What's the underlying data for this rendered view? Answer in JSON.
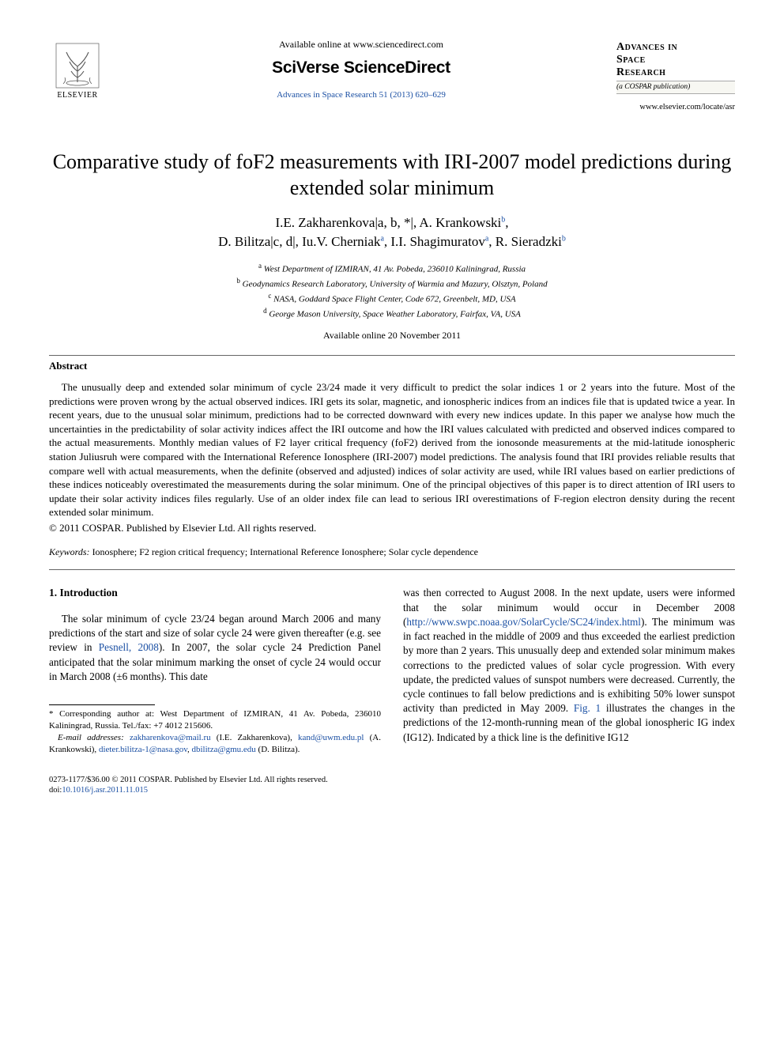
{
  "header": {
    "available_online": "Available online at www.sciencedirect.com",
    "platform_brand": "SciVerse ScienceDirect",
    "journal_ref": "Advances in Space Research 51 (2013) 620–629",
    "publisher_label": "ELSEVIER",
    "journal_name_l1": "Advances in",
    "journal_name_l2": "Space",
    "journal_name_l3": "Research",
    "journal_subtitle": "(a COSPAR publication)",
    "journal_url": "www.elsevier.com/locate/asr"
  },
  "article": {
    "title": "Comparative study of foF2 measurements with IRI-2007 model predictions during extended solar minimum",
    "authors_html": "I.E. Zakharenkova|a,b,*|, A. Krankowski|b|, D. Bilitza|c,d|, Iu.V. Cherniak|a|, I.I. Shagimuratov|a|, R. Sieradzki|b|",
    "affiliations": [
      {
        "sup": "a",
        "text": "West Department of IZMIRAN, 41 Av. Pobeda, 236010 Kaliningrad, Russia"
      },
      {
        "sup": "b",
        "text": "Geodynamics Research Laboratory, University of Warmia and Mazury, Olsztyn, Poland"
      },
      {
        "sup": "c",
        "text": "NASA, Goddard Space Flight Center, Code 672, Greenbelt, MD, USA"
      },
      {
        "sup": "d",
        "text": "George Mason University, Space Weather Laboratory, Fairfax, VA, USA"
      }
    ],
    "available_date": "Available online 20 November 2011"
  },
  "abstract": {
    "heading": "Abstract",
    "text": "The unusually deep and extended solar minimum of cycle 23/24 made it very difficult to predict the solar indices 1 or 2 years into the future. Most of the predictions were proven wrong by the actual observed indices. IRI gets its solar, magnetic, and ionospheric indices from an indices file that is updated twice a year. In recent years, due to the unusual solar minimum, predictions had to be corrected downward with every new indices update. In this paper we analyse how much the uncertainties in the predictability of solar activity indices affect the IRI outcome and how the IRI values calculated with predicted and observed indices compared to the actual measurements. Monthly median values of F2 layer critical frequency (foF2) derived from the ionosonde measurements at the mid-latitude ionospheric station Juliusruh were compared with the International Reference Ionosphere (IRI-2007) model predictions. The analysis found that IRI provides reliable results that compare well with actual measurements, when the definite (observed and adjusted) indices of solar activity are used, while IRI values based on earlier predictions of these indices noticeably overestimated the measurements during the solar minimum. One of the principal objectives of this paper is to direct attention of IRI users to update their solar activity indices files regularly. Use of an older index file can lead to serious IRI overestimations of F-region electron density during the recent extended solar minimum.",
    "copyright": "© 2011 COSPAR. Published by Elsevier Ltd. All rights reserved."
  },
  "keywords": {
    "label": "Keywords:",
    "text": " Ionosphere; F2 region critical frequency; International Reference Ionosphere; Solar cycle dependence"
  },
  "body": {
    "section_head": "1. Introduction",
    "col1_p1_a": "The solar minimum of cycle 23/24 began around March 2006 and many predictions of the start and size of solar cycle 24 were given thereafter (e.g. see review in ",
    "col1_p1_link1": "Pesnell, 2008",
    "col1_p1_b": "). In 2007, the solar cycle 24 Prediction Panel anticipated that the solar minimum marking the onset of cycle 24 would occur in March 2008 (±6 months). This date",
    "col2_p1_a": "was then corrected to August 2008. In the next update, users were informed that the solar minimum would occur in December 2008 (",
    "col2_p1_link1": "http://www.swpc.noaa.gov/SolarCycle/SC24/index.html",
    "col2_p1_b": "). The minimum was in fact reached in the middle of 2009 and thus exceeded the earliest prediction by more than 2 years. This unusually deep and extended solar minimum makes corrections to the predicted values of solar cycle progression. With every update, the predicted values of sunspot numbers were decreased. Currently, the cycle continues to fall below predictions and is exhibiting 50% lower sunspot activity than predicted in May 2009. ",
    "col2_p1_link2": "Fig. 1",
    "col2_p1_c": " illustrates the changes in the predictions of the 12-month-running mean of the global ionospheric IG index (IG12). Indicated by a thick line is the definitive IG12"
  },
  "footnotes": {
    "corr": "* Corresponding author at: West Department of IZMIRAN, 41 Av. Pobeda, 236010 Kaliningrad, Russia. Tel./fax: +7 4012 215606.",
    "email_label": "E-mail addresses:",
    "emails": [
      {
        "addr": "zakharenkova@mail.ru",
        "who": " (I.E. Zakharenkova), "
      },
      {
        "addr": "kand@uwm.edu.pl",
        "who": " (A. Krankowski), "
      },
      {
        "addr": "dieter.bilitza-1@nasa.gov",
        "who": ", "
      },
      {
        "addr": "dbilitza@gmu.edu",
        "who": " (D. Bilitza)."
      }
    ]
  },
  "bottom": {
    "line1": "0273-1177/$36.00 © 2011 COSPAR. Published by Elsevier Ltd. All rights reserved.",
    "line2_a": "doi:",
    "line2_b": "10.1016/j.asr.2011.11.015"
  },
  "colors": {
    "link": "#1a4fa3",
    "text": "#000000",
    "bg": "#ffffff"
  }
}
